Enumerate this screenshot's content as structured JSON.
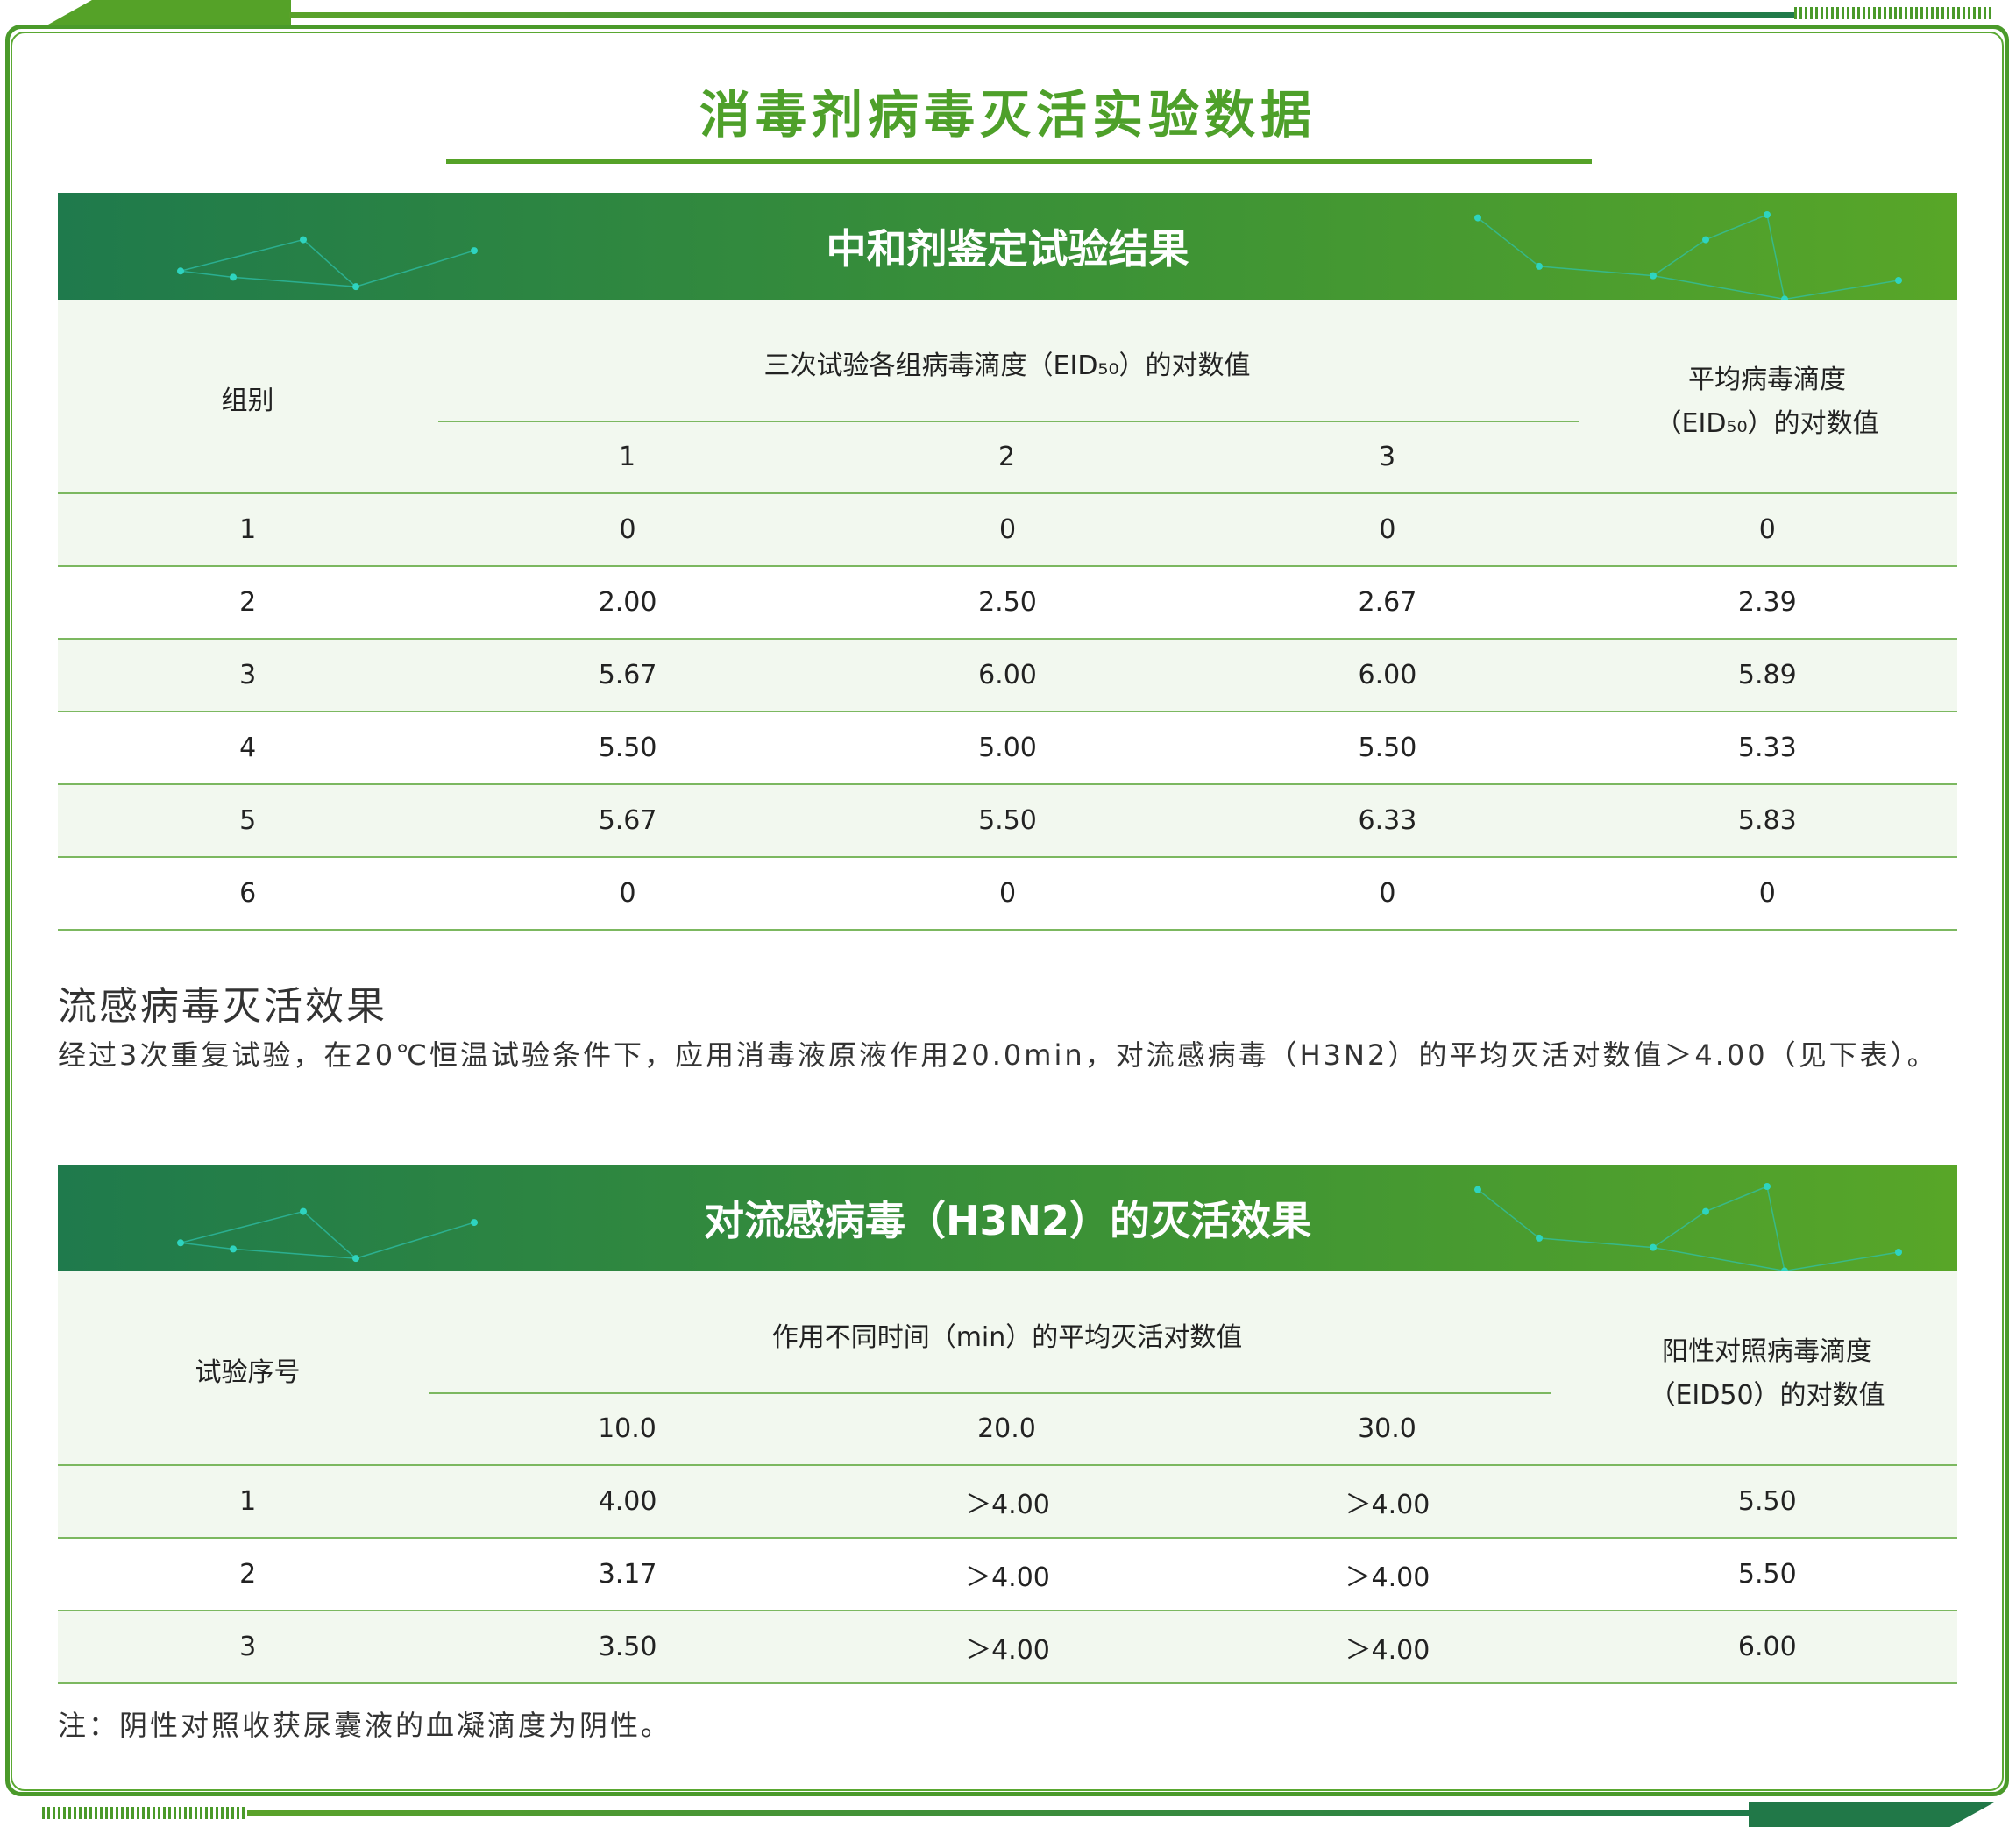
{
  "title": "消毒剂病毒灭活实验数据",
  "colors": {
    "accent": "#4ea02a",
    "banner_start": "#1f7a4c",
    "banner_end": "#58a628",
    "row_alt": "#f2f8ef"
  },
  "table1": {
    "banner": "中和剂鉴定试验结果",
    "col_group": "组别",
    "col_span": "三次试验各组病毒滴度（EID₅₀）的对数值",
    "col_avg_1": "平均病毒滴度",
    "col_avg_2": "（EID₅₀）的对数值",
    "sub": [
      "1",
      "2",
      "3"
    ],
    "rows": [
      [
        "1",
        "0",
        "0",
        "0",
        "0"
      ],
      [
        "2",
        "2.00",
        "2.50",
        "2.67",
        "2.39"
      ],
      [
        "3",
        "5.67",
        "6.00",
        "6.00",
        "5.89"
      ],
      [
        "4",
        "5.50",
        "5.00",
        "5.50",
        "5.33"
      ],
      [
        "5",
        "5.67",
        "5.50",
        "6.33",
        "5.83"
      ],
      [
        "6",
        "0",
        "0",
        "0",
        "0"
      ]
    ]
  },
  "section": {
    "heading": "流感病毒灭活效果",
    "paragraph": "经过3次重复试验，在20℃恒温试验条件下，应用消毒液原液作用20.0min，对流感病毒（H3N2）的平均灭活对数值＞4.00（见下表）。"
  },
  "table2": {
    "banner": "对流感病毒（H3N2）的灭活效果",
    "col_group": "试验序号",
    "col_span": "作用不同时间（min）的平均灭活对数值",
    "col_avg_1": "阳性对照病毒滴度",
    "col_avg_2": "（EID50）的对数值",
    "sub": [
      "10.0",
      "20.0",
      "30.0"
    ],
    "rows": [
      [
        "1",
        "4.00",
        "＞4.00",
        "＞4.00",
        "5.50"
      ],
      [
        "2",
        "3.17",
        "＞4.00",
        "＞4.00",
        "5.50"
      ],
      [
        "3",
        "3.50",
        "＞4.00",
        "＞4.00",
        "6.00"
      ]
    ]
  },
  "note": "注：阴性对照收获尿囊液的血凝滴度为阴性。"
}
